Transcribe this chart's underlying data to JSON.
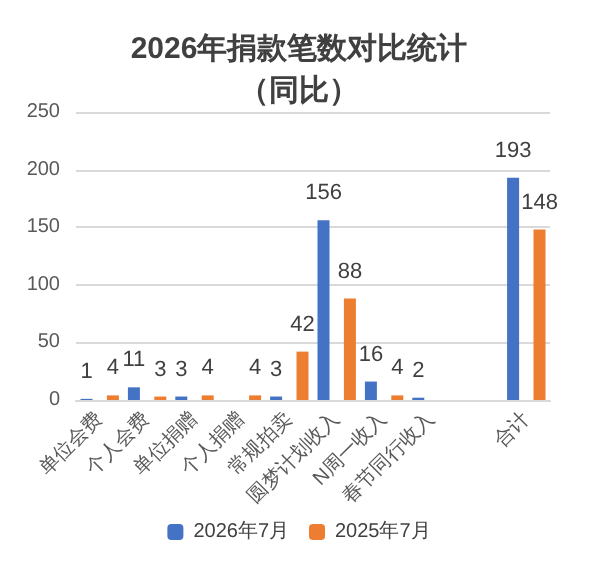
{
  "chart_data": {
    "type": "bar",
    "title": "2026年捐款笔数对比统计",
    "subtitle": "（同比）",
    "categories": [
      "单位会费",
      "个人会费",
      "单位捐赠",
      "个人捐赠",
      "常规拍卖",
      "圆梦计划收入",
      "N周一收入",
      "春节同行收入",
      null,
      "合计"
    ],
    "series": [
      {
        "name": "2026年7月",
        "color": "#4472c4",
        "values": [
          1,
          11,
          3,
          null,
          3,
          156,
          16,
          2,
          null,
          193
        ]
      },
      {
        "name": "2025年7月",
        "color": "#ed7d31",
        "values": [
          4,
          3,
          4,
          4,
          42,
          88,
          4,
          null,
          null,
          148
        ]
      }
    ],
    "ylim": [
      0,
      250
    ],
    "yticks": [
      0,
      50,
      100,
      150,
      200,
      250
    ],
    "grid": "y",
    "legend": "bottom",
    "data_labels": true
  }
}
